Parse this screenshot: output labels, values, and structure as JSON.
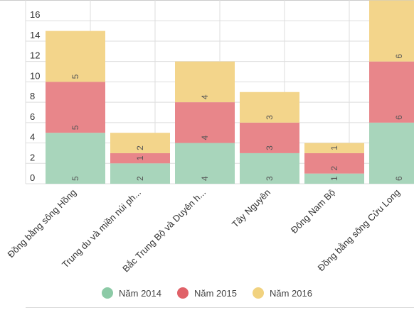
{
  "chart_data": {
    "type": "bar",
    "stacked": true,
    "categories": [
      "Đồng bằng sông Hồng",
      "Trung du và miền núi ph...",
      "Bắc Trung Bộ và Duyên h...",
      "Tây Nguyên",
      "Đông Nam Bộ",
      "Đồng bằng sông Cửu Long"
    ],
    "series": [
      {
        "name": "Năm 2014",
        "color": "#a8d5bb",
        "values": [
          5,
          2,
          4,
          3,
          1,
          6
        ]
      },
      {
        "name": "Năm 2015",
        "color": "#e8868a",
        "values": [
          5,
          1,
          4,
          3,
          2,
          6
        ]
      },
      {
        "name": "Năm 2016",
        "color": "#f3d58b",
        "values": [
          5,
          2,
          4,
          3,
          1,
          6
        ]
      }
    ],
    "ylim": [
      0,
      18
    ],
    "yticks": [
      0,
      2,
      4,
      6,
      8,
      10,
      12,
      14,
      16
    ],
    "grid": true,
    "legend_position": "bottom",
    "xlabel": "",
    "ylabel": ""
  },
  "legend_dot_colors": [
    "#8ccaa6",
    "#e06168",
    "#f1d27f"
  ]
}
